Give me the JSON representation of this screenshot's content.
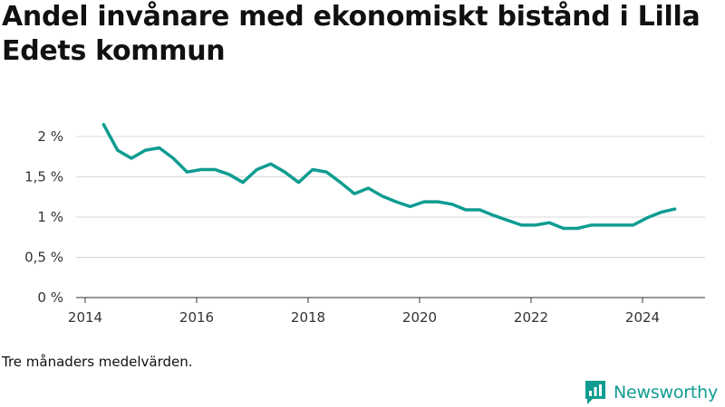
{
  "header": {
    "title": "Andel invånare med ekonomiskt bistånd i Lilla Edets kommun"
  },
  "footer": {
    "note": "Tre månaders medelvärden.",
    "brand_name": "Newsworthy",
    "brand_color": "#0f9c91"
  },
  "chart_data": {
    "type": "line",
    "title": "Andel invånare med ekonomiskt bistånd i Lilla Edets kommun",
    "xlabel": "",
    "ylabel": "",
    "x_ticks": [
      "2014",
      "2016",
      "2018",
      "2020",
      "2022",
      "2024"
    ],
    "y_ticks": [
      "0 %",
      "0,5 %",
      "1 %",
      "1,5 %",
      "2 %"
    ],
    "xlim": [
      2014,
      2025.2
    ],
    "ylim": [
      0,
      2.2
    ],
    "grid": true,
    "line_color": "#0f9c91",
    "series": [
      {
        "x": [
          2014.33,
          2014.58,
          2014.83,
          2015.08,
          2015.33,
          2015.58,
          2015.83,
          2016.08,
          2016.33,
          2016.58,
          2016.83,
          2017.08,
          2017.33,
          2017.58,
          2017.83,
          2018.08,
          2018.33,
          2018.58,
          2018.83,
          2019.08,
          2019.33,
          2019.58,
          2019.83,
          2020.08,
          2020.33,
          2020.58,
          2020.83,
          2021.08,
          2021.33,
          2021.58,
          2021.83,
          2022.08,
          2022.33,
          2022.58,
          2022.83,
          2023.08,
          2023.33,
          2023.58,
          2023.83,
          2024.08,
          2024.33,
          2024.58
        ],
        "values": [
          2.15,
          1.83,
          1.73,
          1.83,
          1.86,
          1.73,
          1.56,
          1.59,
          1.59,
          1.53,
          1.43,
          1.59,
          1.66,
          1.56,
          1.43,
          1.59,
          1.56,
          1.43,
          1.29,
          1.36,
          1.26,
          1.19,
          1.13,
          1.19,
          1.19,
          1.16,
          1.09,
          1.09,
          1.02,
          0.96,
          0.9,
          0.9,
          0.93,
          0.86,
          0.86,
          0.9,
          0.9,
          0.9,
          0.9,
          0.99,
          1.06,
          1.1
        ]
      }
    ]
  }
}
